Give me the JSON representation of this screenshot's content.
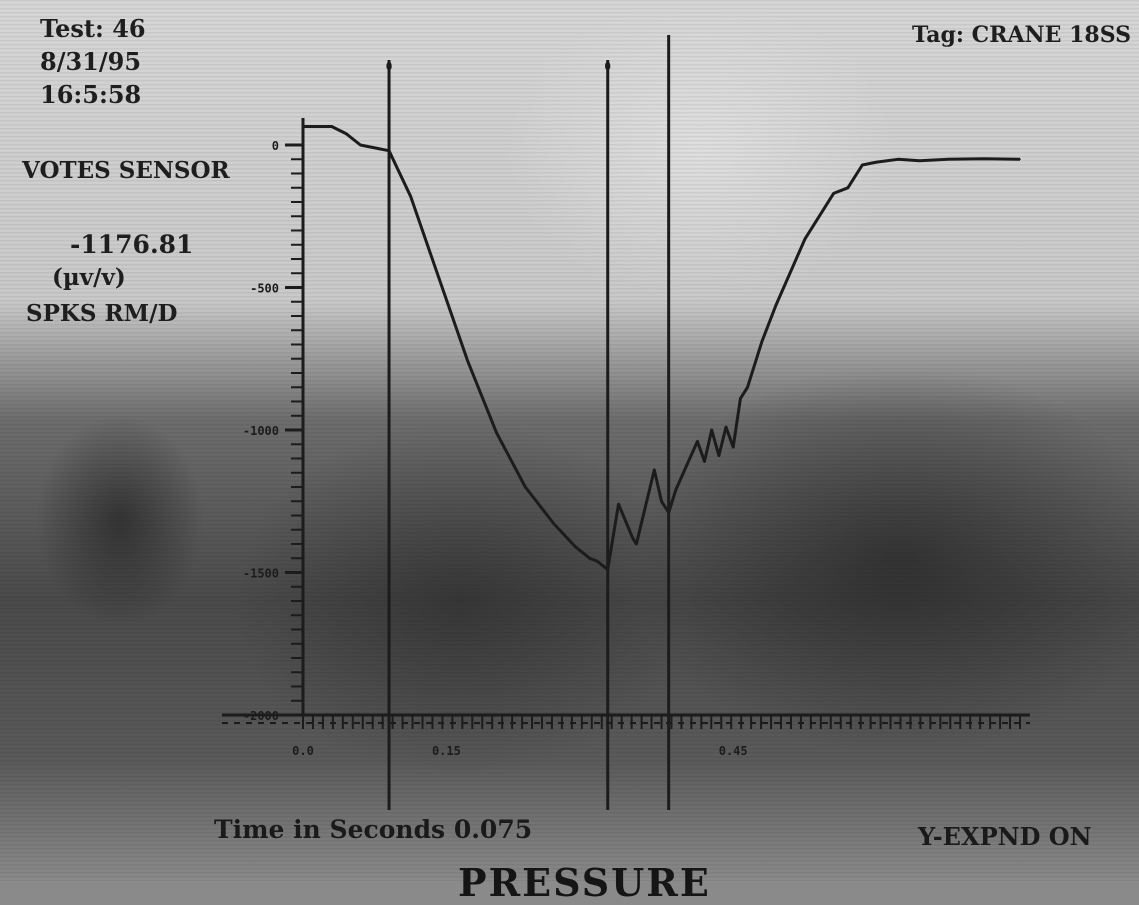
{
  "header": {
    "test": "Test: 46",
    "date": "8/31/95",
    "time": "16:5:58",
    "tag": "Tag: CRANE 18SS"
  },
  "sidebar": {
    "sensor": "VOTES SENSOR",
    "value": "-1176.81",
    "unit": "(µv/v)",
    "mode": "SPKS RM/D"
  },
  "footer": {
    "x_label": "Time in Seconds 0.075",
    "expand": "Y-EXPND ON",
    "bottom_text": "PRESSURE"
  },
  "colors": {
    "trace": "#1c1c1c",
    "axis": "#1c1c1c"
  },
  "chart_data": {
    "type": "line",
    "title": "",
    "xlabel": "Time in Seconds",
    "ylabel": "",
    "ylim": [
      -2000,
      0
    ],
    "y_ticks": [
      {
        "value": 0,
        "label": "0"
      },
      {
        "value": -500,
        "label": "-500"
      },
      {
        "value": -1000,
        "label": "-1000"
      },
      {
        "value": -1500,
        "label": "-1500"
      },
      {
        "value": -2000,
        "label": "-2000"
      }
    ],
    "xlim": [
      0,
      1
    ],
    "x_ticks": [
      {
        "value": 0.0,
        "label": "0.0"
      },
      {
        "value": 0.2,
        "label": "0.15"
      },
      {
        "value": 0.6,
        "label": "0.45"
      }
    ],
    "markers": [
      {
        "x": 0.12,
        "label": "0"
      },
      {
        "x": 0.425,
        "label": "0"
      },
      {
        "x": 0.51,
        "label": ""
      }
    ],
    "grid": false,
    "legend": "none",
    "series": [
      {
        "x": [
          0,
          0.04,
          0.06,
          0.08,
          0.12,
          0.15,
          0.19,
          0.23,
          0.27,
          0.31,
          0.35,
          0.38,
          0.4,
          0.41,
          0.425,
          0.44,
          0.46,
          0.465,
          0.49,
          0.5,
          0.51,
          0.52,
          0.55,
          0.56,
          0.57,
          0.58,
          0.59,
          0.6,
          0.61,
          0.62,
          0.64,
          0.66,
          0.7,
          0.74,
          0.76,
          0.78,
          0.8,
          0.83,
          0.86,
          0.9,
          0.95,
          1.0
        ],
        "y": [
          65,
          65,
          40,
          0,
          -20,
          -180,
          -470,
          -760,
          -1010,
          -1200,
          -1330,
          -1410,
          -1450,
          -1460,
          -1490,
          -1260,
          -1380,
          -1400,
          -1140,
          -1250,
          -1290,
          -1210,
          -1040,
          -1110,
          -1000,
          -1090,
          -990,
          -1060,
          -890,
          -850,
          -690,
          -560,
          -330,
          -170,
          -150,
          -70,
          -60,
          -50,
          -55,
          -50,
          -48,
          -50
        ]
      }
    ]
  }
}
